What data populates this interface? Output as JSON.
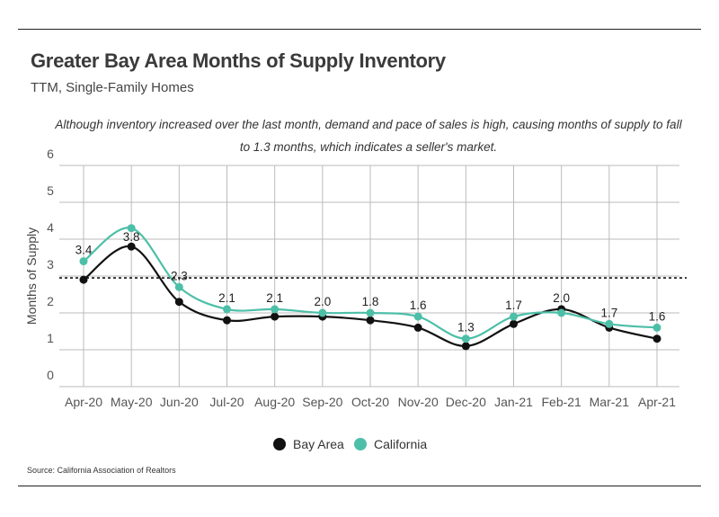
{
  "header": {
    "title": "Greater Bay Area Months of Supply Inventory",
    "subtitle": "TTM, Single-Family Homes",
    "note": "Although inventory increased over the last month, demand and pace of sales is high, causing months of supply to fall to 1.3 months, which indicates a seller's market."
  },
  "legend": {
    "bay_area": "Bay Area",
    "california": "California"
  },
  "source": "Source:  California Association of Realtors",
  "colors": {
    "bay_area": "#111111",
    "california": "#4dbfa8",
    "grid": "#bbbbbb"
  },
  "chart_data": {
    "type": "line",
    "title": "Greater Bay Area Months of Supply Inventory",
    "subtitle": "TTM, Single-Family Homes",
    "xlabel": "",
    "ylabel": "Months of Supply",
    "ylim": [
      0,
      6
    ],
    "yticks": [
      0,
      1,
      2,
      3,
      4,
      5,
      6
    ],
    "grid": true,
    "legend_position": "bottom",
    "categories": [
      "Apr-20",
      "May-20",
      "Jun-20",
      "Jul-20",
      "Aug-20",
      "Sep-20",
      "Oct-20",
      "Nov-20",
      "Dec-20",
      "Jan-21",
      "Feb-21",
      "Mar-21",
      "Apr-21"
    ],
    "series": [
      {
        "name": "Bay Area",
        "values": [
          2.9,
          3.8,
          2.3,
          1.8,
          1.9,
          1.9,
          1.8,
          1.6,
          1.1,
          1.7,
          2.1,
          1.6,
          1.3
        ]
      },
      {
        "name": "California",
        "values": [
          3.4,
          4.3,
          2.7,
          2.1,
          2.1,
          2.0,
          2.0,
          1.9,
          1.3,
          1.9,
          2.0,
          1.7,
          1.6
        ]
      }
    ],
    "data_labels": [
      "3.4",
      "3.8",
      "2.3",
      "2.1",
      "2.1",
      "2.0",
      "1.8",
      "1.6",
      "1.3",
      "1.7",
      "2.0",
      "1.7",
      "1.6"
    ],
    "reference_line": {
      "value": 2.95,
      "style": "dashed"
    }
  }
}
